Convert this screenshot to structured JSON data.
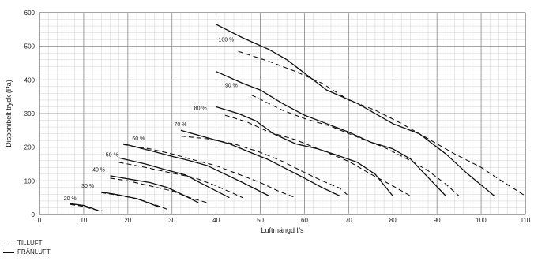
{
  "chart_data": {
    "type": "line",
    "xlabel": "Luftmängd l/s",
    "ylabel": "Disponibelt tryck (Pa)",
    "xlim": [
      0,
      110
    ],
    "ylim": [
      0,
      600
    ],
    "x_ticks": [
      0,
      10,
      20,
      30,
      40,
      50,
      60,
      70,
      80,
      90,
      100,
      110
    ],
    "y_ticks": [
      0,
      100,
      200,
      300,
      400,
      500,
      600
    ],
    "grid": true,
    "grid_minor_step": [
      2,
      20
    ],
    "legend": [
      {
        "label": "TILLUFT",
        "style": "dashed"
      },
      {
        "label": "FRÅNLUFT",
        "style": "solid"
      }
    ],
    "series": [
      {
        "group": "20 %",
        "kind": "TILLUFT",
        "style": "dashed",
        "points": [
          [
            7,
            30
          ],
          [
            10,
            24
          ],
          [
            12,
            16
          ],
          [
            14.5,
            10
          ]
        ]
      },
      {
        "group": "20 %",
        "kind": "FRÅNLUFT",
        "style": "solid",
        "points": [
          [
            7,
            32
          ],
          [
            10,
            27
          ],
          [
            12,
            18
          ],
          [
            13.5,
            10
          ]
        ]
      },
      {
        "group": "30 %",
        "kind": "TILLUFT",
        "style": "dashed",
        "points": [
          [
            14,
            65
          ],
          [
            18,
            57
          ],
          [
            22,
            47
          ],
          [
            26,
            30
          ],
          [
            29,
            15
          ]
        ]
      },
      {
        "group": "30 %",
        "kind": "FRÅNLUFT",
        "style": "solid",
        "points": [
          [
            14,
            67
          ],
          [
            18,
            58
          ],
          [
            22,
            47
          ],
          [
            25,
            33
          ],
          [
            27,
            22
          ]
        ]
      },
      {
        "group": "40 %",
        "kind": "TILLUFT",
        "style": "dashed",
        "points": [
          [
            16,
            108
          ],
          [
            20,
            100
          ],
          [
            25,
            85
          ],
          [
            30,
            70
          ],
          [
            34,
            50
          ],
          [
            38,
            35
          ]
        ]
      },
      {
        "group": "40 %",
        "kind": "FRÅNLUFT",
        "style": "solid",
        "points": [
          [
            16,
            115
          ],
          [
            20,
            106
          ],
          [
            25,
            95
          ],
          [
            29,
            80
          ],
          [
            33,
            55
          ],
          [
            36,
            35
          ]
        ]
      },
      {
        "group": "50 %",
        "kind": "TILLUFT",
        "style": "dashed",
        "points": [
          [
            18,
            155
          ],
          [
            24,
            140
          ],
          [
            30,
            123
          ],
          [
            35,
            110
          ],
          [
            40,
            85
          ],
          [
            44,
            62
          ],
          [
            46,
            50
          ]
        ]
      },
      {
        "group": "50 %",
        "kind": "FRÅNLUFT",
        "style": "solid",
        "points": [
          [
            18,
            168
          ],
          [
            24,
            150
          ],
          [
            28,
            135
          ],
          [
            33,
            118
          ],
          [
            37,
            90
          ],
          [
            40,
            70
          ],
          [
            43,
            50
          ]
        ]
      },
      {
        "group": "60 %",
        "kind": "TILLUFT",
        "style": "dashed",
        "points": [
          [
            19,
            208
          ],
          [
            25,
            195
          ],
          [
            30,
            180
          ],
          [
            35,
            162
          ],
          [
            40,
            145
          ],
          [
            45,
            120
          ],
          [
            50,
            95
          ],
          [
            54,
            70
          ],
          [
            58,
            50
          ]
        ]
      },
      {
        "group": "60 %",
        "kind": "FRÅNLUFT",
        "style": "solid",
        "points": [
          [
            19,
            210
          ],
          [
            25,
            190
          ],
          [
            30,
            173
          ],
          [
            34,
            160
          ],
          [
            38,
            145
          ],
          [
            42,
            120
          ],
          [
            46,
            95
          ],
          [
            49,
            75
          ],
          [
            52,
            55
          ]
        ]
      },
      {
        "group": "70 %",
        "kind": "TILLUFT",
        "style": "dashed",
        "points": [
          [
            32,
            233
          ],
          [
            38,
            225
          ],
          [
            44,
            210
          ],
          [
            50,
            185
          ],
          [
            55,
            158
          ],
          [
            60,
            125
          ],
          [
            64,
            100
          ],
          [
            68,
            78
          ],
          [
            70,
            55
          ]
        ]
      },
      {
        "group": "70 %",
        "kind": "FRÅNLUFT",
        "style": "solid",
        "points": [
          [
            32,
            250
          ],
          [
            38,
            228
          ],
          [
            43,
            210
          ],
          [
            48,
            183
          ],
          [
            52,
            162
          ],
          [
            56,
            135
          ],
          [
            60,
            108
          ],
          [
            64,
            80
          ],
          [
            68,
            55
          ]
        ]
      },
      {
        "group": "80 %",
        "kind": "TILLUFT",
        "style": "dashed",
        "points": [
          [
            42,
            295
          ],
          [
            47,
            275
          ],
          [
            52,
            245
          ],
          [
            58,
            222
          ],
          [
            64,
            190
          ],
          [
            70,
            158
          ],
          [
            75,
            120
          ],
          [
            80,
            85
          ],
          [
            84,
            55
          ]
        ]
      },
      {
        "group": "80 %",
        "kind": "FRÅNLUFT",
        "style": "solid",
        "points": [
          [
            40,
            320
          ],
          [
            45,
            300
          ],
          [
            49,
            278
          ],
          [
            53,
            240
          ],
          [
            58,
            210
          ],
          [
            63,
            195
          ],
          [
            67,
            178
          ],
          [
            72,
            155
          ],
          [
            76,
            120
          ],
          [
            80,
            55
          ]
        ]
      },
      {
        "group": "90 %",
        "kind": "TILLUFT",
        "style": "dashed",
        "points": [
          [
            48,
            355
          ],
          [
            55,
            310
          ],
          [
            60,
            285
          ],
          [
            66,
            262
          ],
          [
            72,
            230
          ],
          [
            78,
            200
          ],
          [
            84,
            160
          ],
          [
            88,
            130
          ],
          [
            92,
            90
          ],
          [
            95,
            55
          ]
        ]
      },
      {
        "group": "90 %",
        "kind": "FRÅNLUFT",
        "style": "solid",
        "points": [
          [
            40,
            425
          ],
          [
            46,
            390
          ],
          [
            50,
            370
          ],
          [
            55,
            330
          ],
          [
            60,
            295
          ],
          [
            65,
            270
          ],
          [
            70,
            245
          ],
          [
            75,
            215
          ],
          [
            80,
            195
          ],
          [
            84,
            165
          ],
          [
            88,
            110
          ],
          [
            92,
            55
          ]
        ]
      },
      {
        "group": "100 %",
        "kind": "TILLUFT",
        "style": "dashed",
        "points": [
          [
            45,
            485
          ],
          [
            52,
            455
          ],
          [
            58,
            425
          ],
          [
            64,
            390
          ],
          [
            70,
            340
          ],
          [
            76,
            310
          ],
          [
            82,
            270
          ],
          [
            88,
            225
          ],
          [
            94,
            180
          ],
          [
            100,
            140
          ],
          [
            104,
            105
          ],
          [
            110,
            55
          ]
        ]
      },
      {
        "group": "100 %",
        "kind": "FRÅNLUFT",
        "style": "solid",
        "points": [
          [
            40,
            565
          ],
          [
            46,
            525
          ],
          [
            52,
            490
          ],
          [
            56,
            460
          ],
          [
            60,
            420
          ],
          [
            65,
            370
          ],
          [
            72,
            330
          ],
          [
            80,
            270
          ],
          [
            86,
            240
          ],
          [
            92,
            180
          ],
          [
            97,
            120
          ],
          [
            103,
            55
          ]
        ]
      }
    ],
    "point_labels": [
      {
        "text": "20 %",
        "at": [
          5.5,
          42
        ]
      },
      {
        "text": "30 %",
        "at": [
          9.5,
          80
        ]
      },
      {
        "text": "40 %",
        "at": [
          12,
          128
        ]
      },
      {
        "text": "50 %",
        "at": [
          15,
          172
        ]
      },
      {
        "text": "60 %",
        "at": [
          21,
          220
        ]
      },
      {
        "text": "70 %",
        "at": [
          30.5,
          263
        ]
      },
      {
        "text": "80 %",
        "at": [
          35,
          310
        ]
      },
      {
        "text": "90 %",
        "at": [
          42,
          378
        ]
      },
      {
        "text": "100 %",
        "at": [
          40.5,
          515
        ]
      }
    ]
  }
}
